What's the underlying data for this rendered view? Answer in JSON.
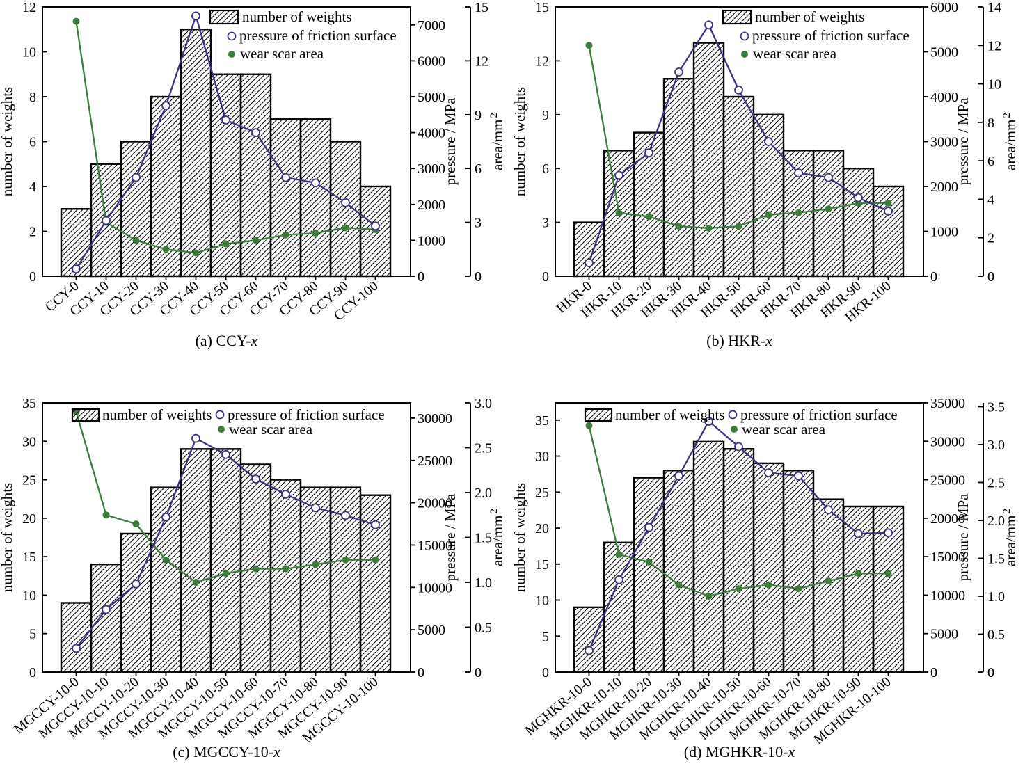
{
  "figure": {
    "background": "#ffffff",
    "colors": {
      "axis": "#000000",
      "bar_fill": "#ffffff",
      "bar_hatch": "#000000",
      "pressure_line": "#3d3080",
      "pressure_marker_fill": "#ffffff",
      "area_line": "#3d7b3a"
    }
  },
  "chart_data": [
    {
      "id": "a",
      "type": "bar+line",
      "caption_prefix": "(a)  CCY-",
      "caption_italic": "x",
      "legend_style": "stacked",
      "legend": [
        "number of weights",
        "pressure of friction surface",
        "wear scar area"
      ],
      "categories": [
        "CCY-0",
        "CCY-10",
        "CCY-20",
        "CCY-30",
        "CCY-40",
        "CCY-50",
        "CCY-60",
        "CCY-70",
        "CCY-80",
        "CCY-90",
        "CCY-100"
      ],
      "bars": {
        "ylabel": "number of weights",
        "values": [
          3,
          5,
          6,
          8,
          11,
          9,
          9,
          7,
          7,
          6,
          4
        ],
        "ymax": 12,
        "ticks": [
          0,
          2,
          4,
          6,
          8,
          10,
          12
        ],
        "tick_labels": [
          "0",
          "2",
          "4",
          "6",
          "8",
          "10",
          "12"
        ]
      },
      "pressure": {
        "ylabel": "pressure / MPa",
        "values": [
          200,
          1550,
          2750,
          4750,
          7250,
          4350,
          4000,
          2750,
          2600,
          2050,
          1400
        ],
        "ymax": 7500,
        "ticks": [
          0,
          1000,
          2000,
          3000,
          4000,
          5000,
          6000,
          7000
        ],
        "tick_labels": [
          "0",
          "1000",
          "2000",
          "3000",
          "4000",
          "5000",
          "6000",
          "7000"
        ]
      },
      "area": {
        "ylabel_base": "area/mm",
        "ylabel_sup": "2",
        "values": [
          14.2,
          3.0,
          2.0,
          1.5,
          1.3,
          1.8,
          2.0,
          2.3,
          2.4,
          2.7,
          2.6
        ],
        "ymax": 15,
        "ticks": [
          0,
          3,
          6,
          9,
          12,
          15
        ],
        "tick_labels": [
          "0",
          "3",
          "6",
          "9",
          "12",
          "15"
        ]
      }
    },
    {
      "id": "b",
      "type": "bar+line",
      "caption_prefix": "(b)  HKR-",
      "caption_italic": "x",
      "legend_style": "stacked",
      "legend": [
        "number of weights",
        "pressure of friction surface",
        "wear scar area"
      ],
      "categories": [
        "HKR-0",
        "HKR-10",
        "HKR-20",
        "HKR-30",
        "HKR-40",
        "HKR-50",
        "HKR-60",
        "HKR-70",
        "HKR-80",
        "HKR-90",
        "HKR-100"
      ],
      "bars": {
        "ylabel": "number of weights",
        "values": [
          3,
          7,
          8,
          11,
          13,
          10,
          9,
          7,
          7,
          6,
          5
        ],
        "ymax": 15,
        "ticks": [
          0,
          3,
          6,
          9,
          12,
          15
        ],
        "tick_labels": [
          "0",
          "3",
          "6",
          "9",
          "12",
          "15"
        ]
      },
      "pressure": {
        "ylabel": "pressure / MPa",
        "values": [
          300,
          2250,
          2750,
          4550,
          5600,
          4150,
          3000,
          2300,
          2200,
          1750,
          1450
        ],
        "ymax": 6000,
        "ticks": [
          0,
          1000,
          2000,
          3000,
          4000,
          5000,
          6000
        ],
        "tick_labels": [
          "0",
          "1000",
          "2000",
          "3000",
          "4000",
          "5000",
          "6000"
        ]
      },
      "area": {
        "ylabel_base": "area/mm",
        "ylabel_sup": "2",
        "values": [
          12.0,
          3.3,
          3.1,
          2.6,
          2.5,
          2.6,
          3.2,
          3.3,
          3.5,
          3.8,
          3.8
        ],
        "ymax": 14,
        "ticks": [
          0,
          2,
          4,
          6,
          8,
          10,
          12,
          14
        ],
        "tick_labels": [
          "0",
          "2",
          "4",
          "6",
          "8",
          "10",
          "12",
          "14"
        ]
      }
    },
    {
      "id": "c",
      "type": "bar+line",
      "caption_prefix": "(c)  MGCCY-10-",
      "caption_italic": "x",
      "legend_style": "inline",
      "legend": [
        "number of weights",
        "pressure of friction surface",
        "wear scar area"
      ],
      "categories": [
        "MGCCY-10-0",
        "MGCCY-10-10",
        "MGCCY-10-20",
        "MGCCY-10-30",
        "MGCCY-10-40",
        "MGCCY-10-50",
        "MGCCY-10-60",
        "MGCCY-10-70",
        "MGCCY-10-80",
        "MGCCY-10-90",
        "MGCCY-10-100"
      ],
      "bars": {
        "ylabel": "number of weights",
        "values": [
          9,
          14,
          18,
          24,
          29,
          29,
          27,
          25,
          24,
          24,
          23
        ],
        "ymax": 35,
        "ticks": [
          0,
          5,
          10,
          15,
          20,
          25,
          30,
          35
        ],
        "tick_labels": [
          "0",
          "5",
          "10",
          "15",
          "20",
          "25",
          "30",
          "35"
        ]
      },
      "pressure": {
        "ylabel": "pressure / MPa",
        "values": [
          2800,
          7400,
          10400,
          18300,
          27600,
          25700,
          22800,
          21000,
          19400,
          18500,
          17400
        ],
        "ymax": 31800,
        "ticks": [
          0,
          5000,
          10000,
          15000,
          20000,
          25000,
          30000
        ],
        "tick_labels": [
          "0",
          "5000",
          "10000",
          "15000",
          "20000",
          "25000",
          "30000"
        ]
      },
      "area": {
        "ylabel_base": "area/mm",
        "ylabel_sup": "2",
        "values": [
          2.9,
          1.75,
          1.65,
          1.25,
          1.0,
          1.1,
          1.15,
          1.15,
          1.2,
          1.25,
          1.25
        ],
        "ymax": 3.0,
        "ticks": [
          0,
          0.5,
          1.0,
          1.5,
          2.0,
          2.5,
          3.0
        ],
        "tick_labels": [
          "0",
          "0.5",
          "1.0",
          "1.5",
          "2.0",
          "2.5",
          "3.0"
        ]
      }
    },
    {
      "id": "d",
      "type": "bar+line",
      "caption_prefix": "(d)  MGHKR-10-",
      "caption_italic": "x",
      "legend_style": "inline",
      "legend": [
        "number of weights",
        "pressure of friction surface",
        "wear scar area"
      ],
      "categories": [
        "MGHKR-10-0",
        "MGHKR-10-10",
        "MGHKR-10-20",
        "MGHKR-10-30",
        "MGHKR-10-40",
        "MGHKR-10-50",
        "MGHKR-10-60",
        "MGHKR-10-70",
        "MGHKR-10-80",
        "MGHKR-10-90",
        "MGHKR-10-100"
      ],
      "bars": {
        "ylabel": "number of weights",
        "values": [
          9,
          18,
          27,
          28,
          32,
          31,
          29,
          28,
          24,
          23,
          23
        ],
        "ymax": 37.4,
        "ticks": [
          0,
          5,
          10,
          15,
          20,
          25,
          30,
          35
        ],
        "tick_labels": [
          "0",
          "5",
          "10",
          "15",
          "20",
          "25",
          "30",
          "35"
        ]
      },
      "pressure": {
        "ylabel": "pressure / MPa",
        "values": [
          2800,
          12000,
          18800,
          25500,
          32600,
          29300,
          25900,
          25500,
          21100,
          18000,
          18100
        ],
        "ymax": 35000,
        "ticks": [
          0,
          5000,
          10000,
          15000,
          20000,
          25000,
          30000,
          35000
        ],
        "tick_labels": [
          "0",
          "5000",
          "10000",
          "15000",
          "20000",
          "25000",
          "30000",
          "35000"
        ]
      },
      "area": {
        "ylabel_base": "area/mm",
        "ylabel_sup": "2",
        "values": [
          3.25,
          1.55,
          1.45,
          1.15,
          1.0,
          1.1,
          1.15,
          1.1,
          1.2,
          1.3,
          1.3
        ],
        "ymax": 3.55,
        "ticks": [
          0,
          0.5,
          1.0,
          1.5,
          2.0,
          2.5,
          3.0,
          3.5
        ],
        "tick_labels": [
          "0",
          "0.5",
          "1.0",
          "1.5",
          "2.0",
          "2.5",
          "3.0",
          "3.5"
        ]
      }
    }
  ]
}
